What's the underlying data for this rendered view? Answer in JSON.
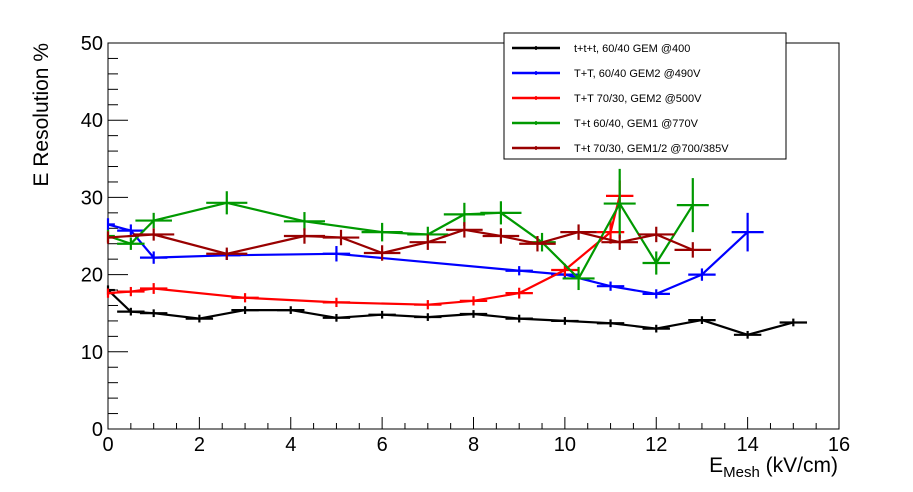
{
  "chart_data": {
    "type": "line",
    "xlabel": "E",
    "xlabel_sub": "Mesh",
    "xlabel_unit": " (kV/cm)",
    "ylabel": "E Resolution %",
    "xlim": [
      0,
      16
    ],
    "ylim": [
      0,
      50
    ],
    "x_ticks": [
      "0",
      "2",
      "4",
      "6",
      "8",
      "10",
      "12",
      "14",
      "16"
    ],
    "y_ticks": [
      "0",
      "10",
      "20",
      "30",
      "40",
      "50"
    ],
    "grid": false,
    "legend_position": "top-right",
    "series": [
      {
        "name": "t+t+t, 60/40 GEM @400",
        "color": "#000000",
        "x": [
          0,
          0.5,
          1,
          2,
          3,
          4,
          5,
          6,
          7,
          8,
          9,
          10,
          11,
          12,
          13,
          14,
          15
        ],
        "y": [
          18.0,
          15.2,
          15.0,
          14.3,
          15.4,
          15.4,
          14.4,
          14.8,
          14.5,
          14.9,
          14.3,
          14.0,
          13.7,
          13.0,
          14.1,
          12.2,
          13.8
        ],
        "xerr": [
          0.15,
          0.3,
          0.3,
          0.3,
          0.3,
          0.3,
          0.3,
          0.3,
          0.3,
          0.3,
          0.3,
          0.3,
          0.3,
          0.3,
          0.3,
          0.3,
          0.3
        ],
        "yerr": [
          0.6,
          0.5,
          0.5,
          0.5,
          0.5,
          0.5,
          0.5,
          0.5,
          0.5,
          0.5,
          0.5,
          0.5,
          0.5,
          0.5,
          0.5,
          0.5,
          0.5
        ]
      },
      {
        "name": "T+T, 60/40 GEM2 @490V",
        "color": "#0000ff",
        "x": [
          0,
          0.5,
          1,
          2.6,
          5,
          9,
          10,
          11,
          12,
          13,
          14
        ],
        "y": [
          26.5,
          25.7,
          22.2,
          22.5,
          22.7,
          20.5,
          20.0,
          18.5,
          17.5,
          20.0,
          25.5
        ],
        "xerr": [
          0.15,
          0.3,
          0.3,
          0.3,
          0.3,
          0.3,
          0.3,
          0.3,
          0.3,
          0.3,
          0.35
        ],
        "yerr": [
          0.8,
          0.8,
          0.8,
          0.6,
          1.0,
          0.6,
          0.6,
          0.6,
          0.6,
          0.8,
          2.5
        ]
      },
      {
        "name": "T+T 70/30, GEM2 @500V",
        "color": "#ff0000",
        "x": [
          0,
          0.5,
          1,
          3,
          5,
          7,
          8,
          9,
          10,
          11,
          11.2
        ],
        "y": [
          17.6,
          17.8,
          18.2,
          17.0,
          16.4,
          16.1,
          16.6,
          17.6,
          20.6,
          25.5,
          30.2
        ],
        "xerr": [
          0.15,
          0.3,
          0.3,
          0.3,
          0.3,
          0.3,
          0.3,
          0.3,
          0.3,
          0.3,
          0.3
        ],
        "yerr": [
          0.6,
          0.6,
          0.7,
          0.6,
          0.6,
          0.6,
          0.6,
          0.7,
          0.8,
          1.5,
          2.0
        ]
      },
      {
        "name": "T+t 60/40, GEM1 @770V",
        "color": "#009900",
        "x": [
          0,
          0.5,
          1,
          2.6,
          4.3,
          6,
          7,
          7.8,
          8.6,
          9.5,
          10.3,
          11.2,
          12,
          12.8
        ],
        "y": [
          25.0,
          24.0,
          27.0,
          29.3,
          26.9,
          25.5,
          25.2,
          27.8,
          28.0,
          24.2,
          19.5,
          29.2,
          21.5,
          29.0
        ],
        "xerr": [
          0.15,
          0.3,
          0.4,
          0.45,
          0.45,
          0.45,
          0.45,
          0.45,
          0.45,
          0.3,
          0.35,
          0.35,
          0.3,
          0.35
        ],
        "yerr": [
          0.8,
          0.8,
          1.0,
          1.5,
          1.2,
          1.2,
          1.0,
          1.5,
          1.5,
          1.2,
          1.5,
          4.5,
          1.5,
          3.5
        ]
      },
      {
        "name": "T+t 70/30, GEM1/2 @700/385V",
        "color": "#990000",
        "x": [
          0,
          1,
          2.6,
          4.3,
          5.1,
          6,
          7,
          7.8,
          8.6,
          9.4,
          10.3,
          11.2,
          12,
          12.8
        ],
        "y": [
          24.8,
          25.2,
          22.7,
          25.0,
          24.8,
          22.8,
          24.2,
          25.8,
          25.0,
          24.0,
          25.5,
          24.2,
          25.2,
          23.2
        ],
        "xerr": [
          0.15,
          0.45,
          0.45,
          0.45,
          0.4,
          0.4,
          0.4,
          0.4,
          0.4,
          0.4,
          0.4,
          0.4,
          0.4,
          0.4
        ],
        "yerr": [
          0.8,
          0.8,
          0.8,
          1.0,
          1.0,
          1.0,
          1.0,
          1.0,
          1.0,
          1.0,
          1.0,
          1.0,
          1.0,
          1.0
        ]
      }
    ]
  }
}
